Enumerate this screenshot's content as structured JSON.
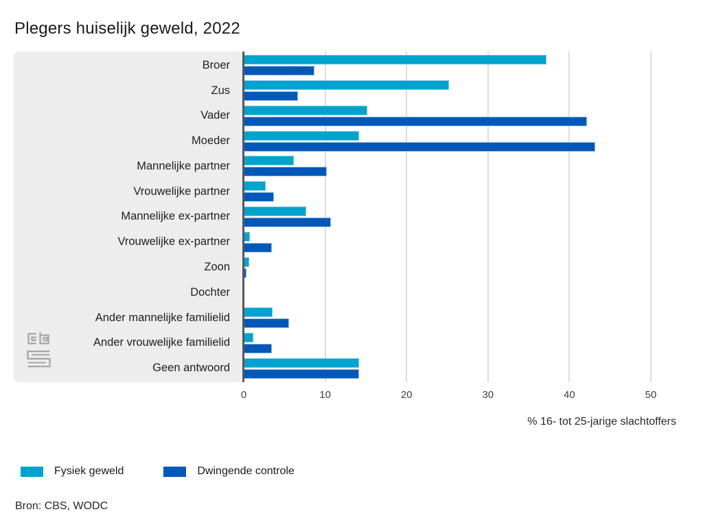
{
  "title": "Plegers huiselijk geweld, 2022",
  "source": "Bron: CBS, WODC",
  "logo": "cbs-logo",
  "colors": {
    "fysiek_geweld": "#00a3cd",
    "dwingende_controle": "#0058b8",
    "panel_background": "#ededed",
    "axis_line": "#57575a",
    "gridline": "#dcdcdc",
    "logo_gray": "#a6a6a6"
  },
  "chart_data": {
    "type": "bar",
    "orientation": "horizontal",
    "title": "Plegers huiselijk geweld, 2022",
    "categories": [
      "Broer",
      "Zus",
      "Vader",
      "Moeder",
      "Mannelijke partner",
      "Vrouwelijke partner",
      "Mannelijke ex-partner",
      "Vrouwelijke ex-partner",
      "Zoon",
      "Dochter",
      "Ander mannelijke familielid",
      "Ander vrouwelijke familielid",
      "Geen antwoord"
    ],
    "series": [
      {
        "name": "Fysiek geweld",
        "color": "#00a3cd",
        "values": [
          37,
          25,
          15,
          14,
          6,
          2.5,
          7.5,
          0.6,
          0.5,
          0,
          3.4,
          1,
          14
        ]
      },
      {
        "name": "Dwingende controle",
        "color": "#0058b8",
        "values": [
          8.5,
          6.5,
          42,
          43,
          10,
          3.5,
          10.5,
          3.3,
          0.2,
          0,
          5.4,
          3.3,
          14
        ]
      }
    ],
    "xlabel": "% 16- tot 25-jarige slachtoffers",
    "ylabel": "",
    "xlim": [
      0,
      50
    ],
    "xticks": [
      "0",
      "10",
      "20",
      "30",
      "40",
      "50"
    ],
    "grid": true,
    "legend_position": "bottom"
  }
}
